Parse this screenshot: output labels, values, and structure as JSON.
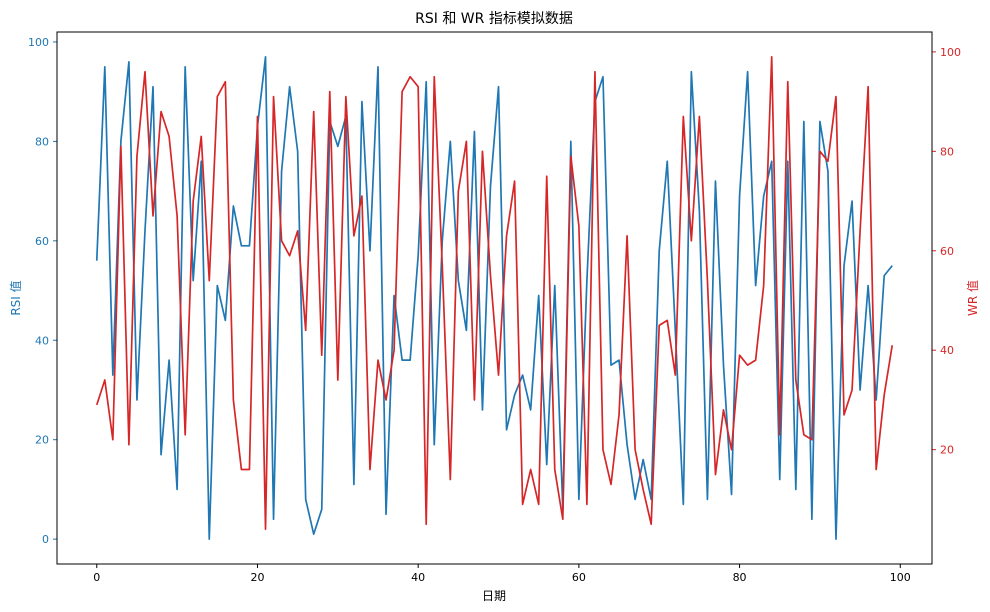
{
  "chart_data": {
    "type": "line",
    "title": "RSI 和 WR 指标模拟数据",
    "xlabel": "日期",
    "ylabel_left": "RSI 值",
    "ylabel_right": "WR 值",
    "xlim": [
      -4.95,
      103.95
    ],
    "ylim_left": [
      -5,
      102
    ],
    "ylim_right": [
      -3,
      104
    ],
    "x_ticks": [
      0,
      20,
      40,
      60,
      80,
      100
    ],
    "y_left_ticks": [
      0,
      20,
      40,
      60,
      80,
      100
    ],
    "y_right_ticks": [
      20,
      40,
      60,
      80,
      100
    ],
    "grid": false,
    "colors": {
      "rsi": "#1f77b4",
      "wr": "#d62728"
    },
    "series": [
      {
        "axis": "left",
        "color": "#1f77b4",
        "values": [
          56,
          95,
          33,
          80,
          96,
          28,
          62,
          91,
          17,
          36,
          10,
          95,
          52,
          76,
          0,
          51,
          44,
          67,
          59,
          59,
          83,
          97,
          4,
          74,
          91,
          78,
          8,
          1,
          6,
          84,
          79,
          85,
          11,
          88,
          58,
          95,
          5,
          49,
          36,
          36,
          57,
          92,
          19,
          60,
          80,
          52,
          42,
          82,
          26,
          71,
          91,
          22,
          29,
          33,
          26,
          49,
          15,
          51,
          6,
          80,
          8,
          52,
          88,
          93,
          35,
          36,
          19,
          8,
          16,
          8,
          58,
          76,
          42,
          7,
          94,
          66,
          8,
          72,
          35,
          9,
          69,
          94,
          51,
          69,
          76,
          12,
          76,
          10,
          84,
          4,
          84,
          74,
          0,
          55,
          68,
          30,
          51,
          28,
          53,
          55
        ]
      },
      {
        "axis": "right",
        "color": "#d62728",
        "values": [
          29,
          34,
          22,
          81,
          21,
          79,
          96,
          67,
          88,
          83,
          67,
          23,
          70,
          83,
          54,
          91,
          94,
          30,
          16,
          16,
          87,
          4,
          91,
          62,
          59,
          64,
          44,
          88,
          39,
          92,
          34,
          91,
          63,
          71,
          16,
          38,
          30,
          40,
          92,
          95,
          93,
          5,
          95,
          57,
          14,
          72,
          82,
          30,
          80,
          55,
          35,
          63,
          74,
          9,
          16,
          9,
          75,
          16,
          6,
          79,
          65,
          9,
          96,
          20,
          13,
          27,
          63,
          20,
          12,
          5,
          45,
          46,
          35,
          87,
          62,
          87,
          54,
          15,
          28,
          20,
          39,
          37,
          38,
          53,
          99,
          23,
          94,
          34,
          23,
          22,
          80,
          78,
          91,
          27,
          32,
          64,
          93,
          16,
          31,
          41
        ]
      }
    ]
  }
}
